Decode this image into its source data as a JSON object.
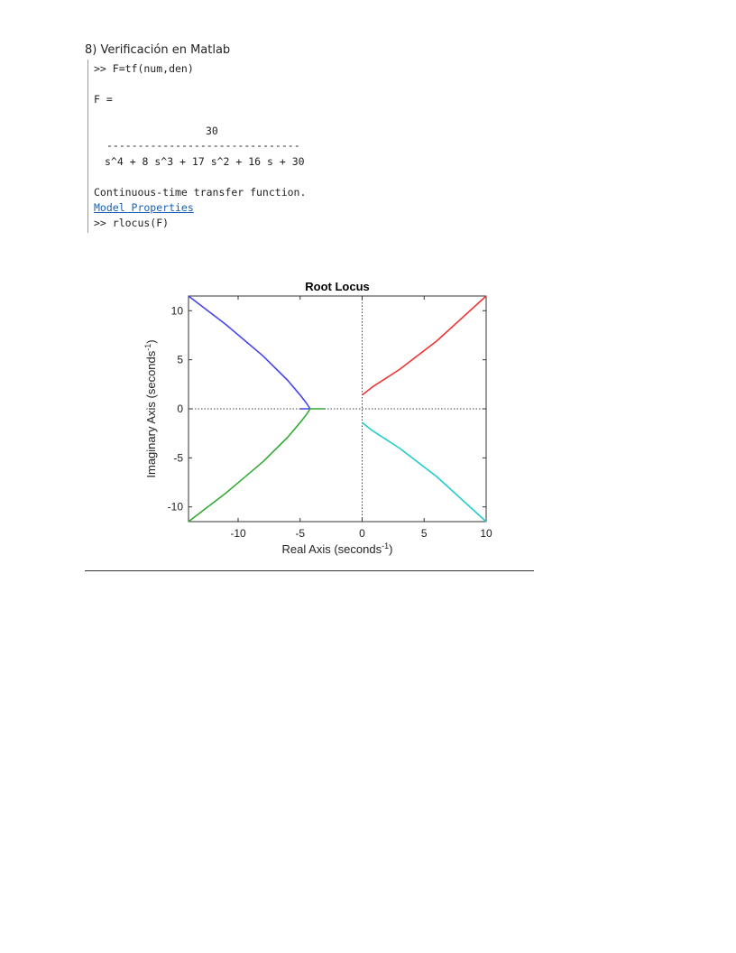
{
  "heading": "8) Verificación en Matlab",
  "console": {
    "lines": [
      ">> F=tf(num,den)",
      "F =",
      "30",
      "-------------------------------",
      "s^4 + 8 s^3 + 17 s^2 + 16 s + 30",
      "Continuous-time transfer function.",
      "Model Properties",
      ">> rlocus(F)"
    ]
  },
  "chart_data": {
    "type": "line",
    "title": "Root Locus",
    "xlabel": "Real Axis (seconds",
    "xlabel_sup": "-1",
    "xlabel_close": ")",
    "ylabel": "Imaginary Axis (seconds",
    "ylabel_sup": "-1",
    "ylabel_close": ")",
    "xlim": [
      -14,
      10
    ],
    "ylim": [
      -11.5,
      11.5
    ],
    "xticks": [
      -10,
      -5,
      0,
      5,
      10
    ],
    "yticks": [
      10,
      5,
      0,
      -5,
      -10
    ],
    "grid": "dotted axes at origin",
    "series": [
      {
        "color": "#4444ee",
        "points": [
          [
            -14,
            11.5
          ],
          [
            -11,
            8.6
          ],
          [
            -8,
            5.4
          ],
          [
            -6,
            2.9
          ],
          [
            -5,
            1.4
          ],
          [
            -4.5,
            0.6
          ],
          [
            -4.2,
            0
          ],
          [
            -5,
            0
          ]
        ]
      },
      {
        "color": "#33aa33",
        "points": [
          [
            -14,
            -11.5
          ],
          [
            -11,
            -8.6
          ],
          [
            -8,
            -5.4
          ],
          [
            -6,
            -2.9
          ],
          [
            -5,
            -1.4
          ],
          [
            -4.5,
            -0.6
          ],
          [
            -4.2,
            0
          ],
          [
            -3.0,
            0
          ]
        ]
      },
      {
        "color": "#ee3333",
        "points": [
          [
            0,
            1.4
          ],
          [
            0.8,
            2.2
          ],
          [
            3,
            4.0
          ],
          [
            6,
            6.9
          ],
          [
            10,
            11.5
          ]
        ]
      },
      {
        "color": "#22cccc",
        "points": [
          [
            0,
            -1.4
          ],
          [
            0.8,
            -2.2
          ],
          [
            3,
            -4.0
          ],
          [
            6,
            -6.9
          ],
          [
            10,
            -11.5
          ]
        ]
      }
    ]
  }
}
